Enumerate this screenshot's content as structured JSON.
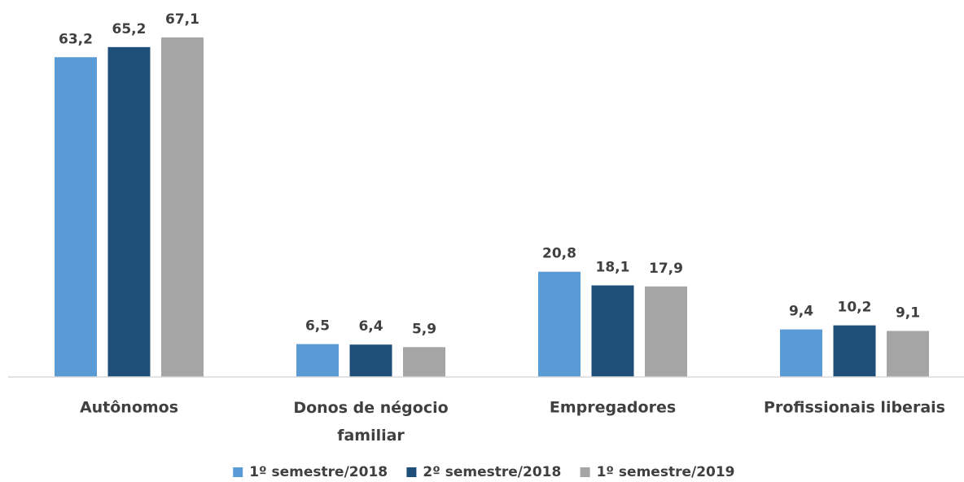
{
  "chart_data": {
    "type": "bar",
    "categories": [
      "Autônomos",
      "Donos de négocio familiar",
      "Empregadores",
      "Profissionais liberais"
    ],
    "series": [
      {
        "name": "1º semestre/2018",
        "color": "#5b9bd5",
        "values": [
          63.2,
          6.5,
          20.8,
          9.4
        ],
        "value_labels": [
          "63,2",
          "6,5",
          "20,8",
          "9,4"
        ]
      },
      {
        "name": "2º semestre/2018",
        "color": "#1f4e79",
        "values": [
          65.2,
          6.4,
          18.1,
          10.2
        ],
        "value_labels": [
          "65,2",
          "6,4",
          "18,1",
          "10,2"
        ]
      },
      {
        "name": "1º semestre/2019",
        "color": "#a5a5a5",
        "values": [
          67.1,
          5.9,
          17.9,
          9.1
        ],
        "value_labels": [
          "67,1",
          "5,9",
          "17,9",
          "9,1"
        ]
      }
    ],
    "ylim": [
      0,
      70
    ],
    "legend": "bottom"
  }
}
